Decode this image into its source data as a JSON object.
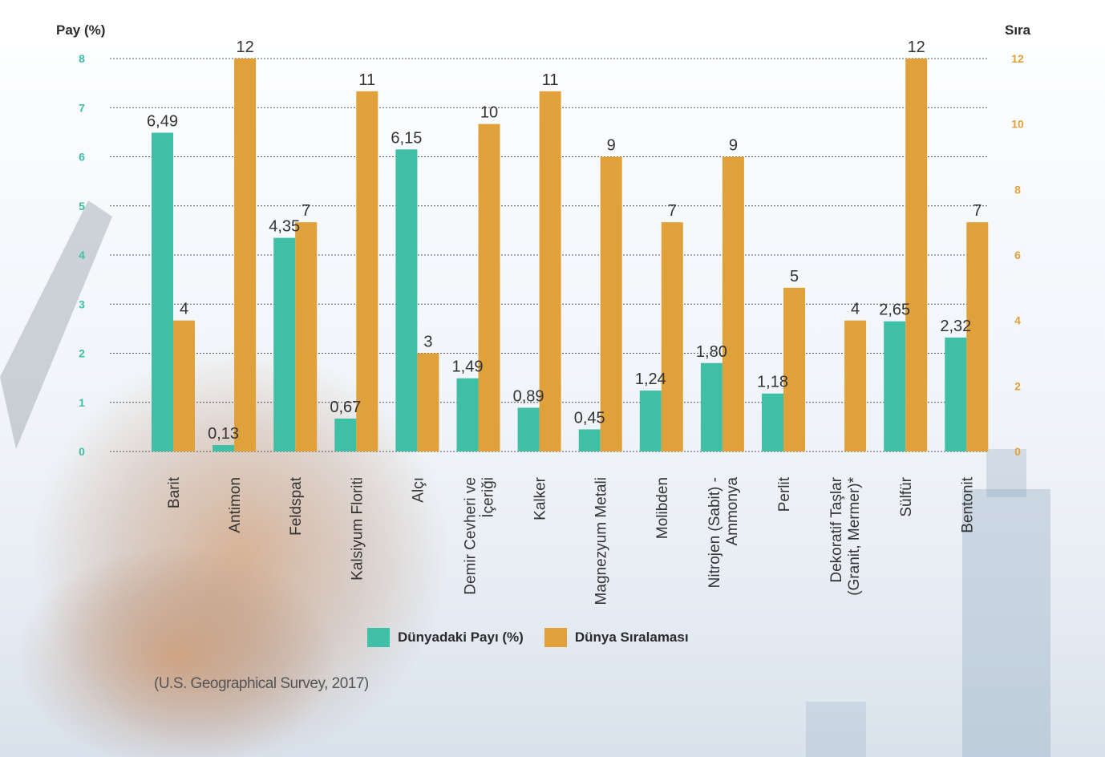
{
  "chart_data": {
    "type": "bar",
    "left_axis_title": "Pay (%)",
    "right_axis_title": "Sıra",
    "left_ylim": [
      0,
      8
    ],
    "right_ylim": [
      0,
      12
    ],
    "left_ticks": [
      "0",
      "1",
      "2",
      "3",
      "4",
      "5",
      "6",
      "7",
      "8"
    ],
    "right_ticks": [
      "0",
      "2",
      "4",
      "6",
      "8",
      "10",
      "12"
    ],
    "grid": true,
    "categories": [
      [
        "Barit"
      ],
      [
        "Antimon"
      ],
      [
        "Feldspat"
      ],
      [
        "Kalsiyum Floriti"
      ],
      [
        "Alçı"
      ],
      [
        "Demir Cevheri ve",
        "İçeriği"
      ],
      [
        "Kalker"
      ],
      [
        "Magnezyum Metali"
      ],
      [
        "Molibden"
      ],
      [
        "Nitrojen (Sabit) -",
        "Ammonya"
      ],
      [
        "Perlit"
      ],
      [
        "Dekoratif Taşlar",
        "(Granit, Mermer)*"
      ],
      [
        "Sülfür"
      ],
      [
        "Bentonit"
      ]
    ],
    "series": [
      {
        "name": "Dünyadaki Payı (%)",
        "axis": "left",
        "color": "#3ebfa6",
        "values": [
          6.49,
          0.13,
          4.35,
          0.67,
          6.15,
          1.49,
          0.89,
          0.45,
          1.24,
          1.8,
          1.18,
          null,
          2.65,
          2.32
        ],
        "labels": [
          "6,49",
          "0,13",
          "4,35",
          "0,67",
          "6,15",
          "1,49",
          "0,89",
          "0,45",
          "1,24",
          "1,80",
          "1,18",
          "",
          "2,65",
          "2,32"
        ]
      },
      {
        "name": "Dünya Sıralaması",
        "axis": "right",
        "color": "#e0a13a",
        "values": [
          4,
          12,
          7,
          11,
          3,
          10,
          11,
          9,
          7,
          9,
          5,
          4,
          12,
          7
        ],
        "labels": [
          "4",
          "12",
          "7",
          "11",
          "3",
          "10",
          "11",
          "9",
          "7",
          "9",
          "5",
          "4",
          "12",
          "7"
        ]
      }
    ],
    "legend_position": "bottom-center"
  },
  "legend": {
    "share_label": "Dünyadaki Payı (%)",
    "rank_label": "Dünya Sıralaması"
  },
  "source": "(U.S. Geographical Survey, 2017)"
}
